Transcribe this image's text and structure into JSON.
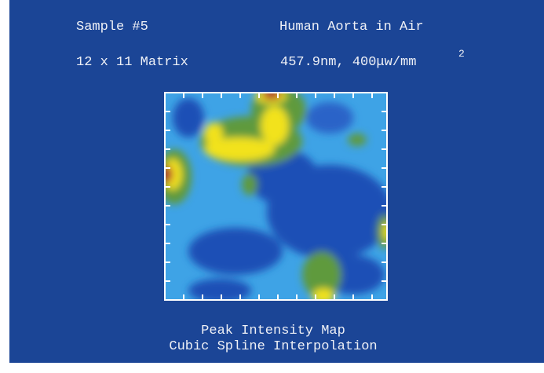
{
  "header": {
    "sample": "Sample #5",
    "specimen": "Human Aorta in Air",
    "matrix": "12 x 11 Matrix",
    "settings": "457.9nm, 400μw/mm",
    "settings_superscript": "2"
  },
  "footer": {
    "line1": "Peak Intensity Map",
    "line2": "Cubic Spline Interpolation"
  }
}
